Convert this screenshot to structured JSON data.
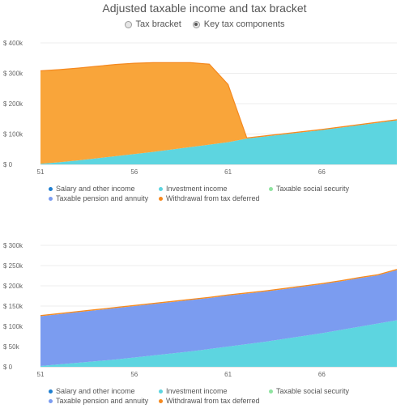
{
  "title": "Adjusted taxable income and tax bracket",
  "toggle": {
    "options": [
      {
        "label": "Tax bracket",
        "checked": false
      },
      {
        "label": "Key tax components",
        "checked": true
      }
    ]
  },
  "colors": {
    "salary": "#1f7fd0",
    "investment": "#5dd5e0",
    "social": "#8fe3a0",
    "pension": "#7b9cf0",
    "withdrawal": "#f9a53a",
    "withdrawal_line": "#f5891f"
  },
  "chart_data": [
    {
      "type": "area",
      "stacked": true,
      "x": [
        51,
        52,
        53,
        54,
        55,
        56,
        57,
        58,
        59,
        60,
        61,
        62,
        63,
        64,
        65,
        66,
        67,
        68,
        69,
        70
      ],
      "xticks": [
        51,
        56,
        61,
        66
      ],
      "yticks": [
        "$ 0",
        "$ 100k",
        "$ 200k",
        "$ 300k",
        "$ 400k"
      ],
      "ylim": [
        0,
        400000
      ],
      "series": [
        {
          "name": "Salary and other income",
          "values": [
            0,
            0,
            0,
            0,
            0,
            0,
            0,
            0,
            0,
            0,
            0,
            0,
            0,
            0,
            0,
            0,
            0,
            0,
            0,
            0
          ]
        },
        {
          "name": "Investment income",
          "values": [
            2000,
            7000,
            13000,
            20000,
            27000,
            34000,
            41000,
            49000,
            57000,
            65000,
            73000,
            85000,
            92000,
            99000,
            106000,
            113000,
            121000,
            129000,
            137000,
            145000
          ]
        },
        {
          "name": "Taxable social security",
          "values": [
            0,
            0,
            0,
            0,
            0,
            0,
            0,
            0,
            0,
            0,
            0,
            0,
            0,
            0,
            0,
            0,
            0,
            0,
            0,
            0
          ]
        },
        {
          "name": "Taxable pension and annuity",
          "values": [
            0,
            0,
            0,
            0,
            0,
            0,
            0,
            0,
            0,
            0,
            0,
            0,
            0,
            0,
            0,
            0,
            0,
            0,
            0,
            0
          ]
        },
        {
          "name": "Withdrawal from tax deferred",
          "values": [
            306000,
            305000,
            304000,
            303000,
            302000,
            299000,
            294000,
            286000,
            278000,
            265000,
            190000,
            2000,
            2000,
            2000,
            2000,
            2000,
            2000,
            2000,
            2000,
            2000
          ]
        }
      ],
      "legend": "bottom"
    },
    {
      "type": "area",
      "stacked": true,
      "x": [
        51,
        52,
        53,
        54,
        55,
        56,
        57,
        58,
        59,
        60,
        61,
        62,
        63,
        64,
        65,
        66,
        67,
        68,
        69,
        70
      ],
      "xticks": [
        51,
        56,
        61,
        66
      ],
      "yticks": [
        "$ 0",
        "$ 50k",
        "$ 100k",
        "$ 150k",
        "$ 200k",
        "$ 250k",
        "$ 300k"
      ],
      "ylim": [
        0,
        300000
      ],
      "series": [
        {
          "name": "Salary and other income",
          "values": [
            0,
            0,
            0,
            0,
            0,
            0,
            0,
            0,
            0,
            0,
            0,
            0,
            0,
            0,
            0,
            0,
            0,
            0,
            0,
            0
          ]
        },
        {
          "name": "Investment income",
          "values": [
            2000,
            6000,
            10000,
            14000,
            18000,
            23000,
            28000,
            33000,
            38000,
            44000,
            50000,
            56000,
            62000,
            69000,
            76000,
            83000,
            91000,
            99000,
            107000,
            115000
          ]
        },
        {
          "name": "Taxable social security",
          "values": [
            0,
            0,
            0,
            0,
            0,
            0,
            0,
            0,
            0,
            0,
            0,
            0,
            0,
            0,
            0,
            0,
            0,
            0,
            0,
            0
          ]
        },
        {
          "name": "Taxable pension and annuity",
          "values": [
            123000,
            124000,
            125000,
            126000,
            127000,
            127000,
            127000,
            127000,
            127000,
            126000,
            126000,
            125000,
            124000,
            123000,
            122000,
            121000,
            120000,
            120000,
            119000,
            124000
          ]
        },
        {
          "name": "Withdrawal from tax deferred",
          "values": [
            1500,
            1500,
            1500,
            1500,
            1500,
            1500,
            1500,
            1500,
            1500,
            1500,
            1500,
            1500,
            1500,
            1500,
            1500,
            1500,
            1500,
            1500,
            1500,
            1500
          ]
        }
      ],
      "legend": "bottom"
    }
  ]
}
